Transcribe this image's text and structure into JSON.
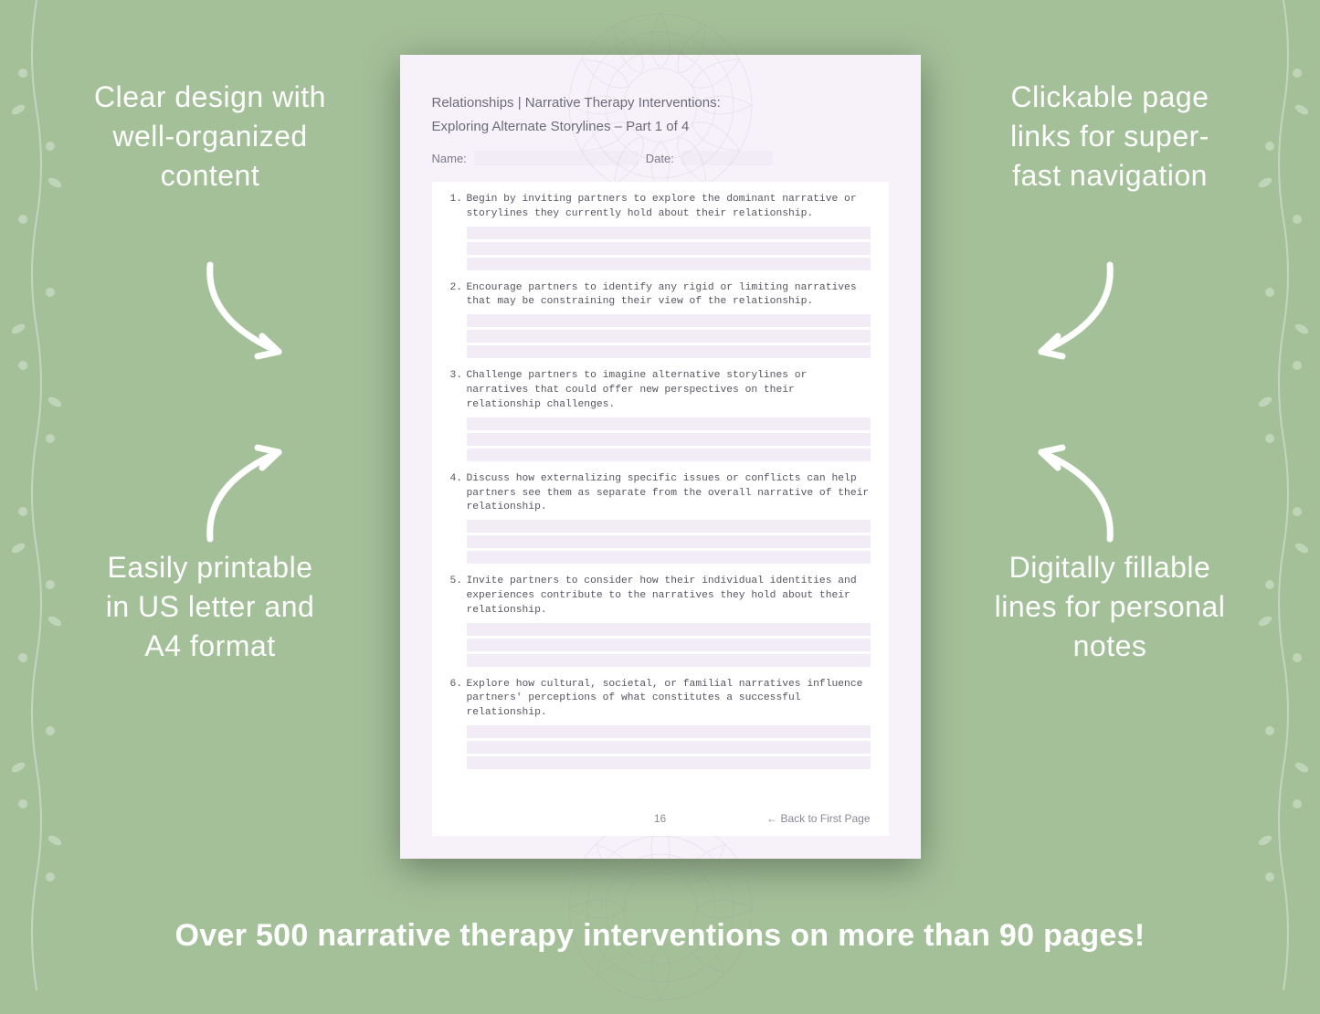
{
  "colors": {
    "background": "#a4c099",
    "callout_text": "#ffffff",
    "page_bg": "#f7f2fa",
    "page_inner_bg": "#ffffff",
    "title_color": "#6b6b7a",
    "body_color": "#555560",
    "field_bg": "#f2ecf6",
    "footer_color": "#8a8a96",
    "arrow_color": "#ffffff",
    "vine_color": "#ffffff",
    "mandala_color": "#888899"
  },
  "callouts": {
    "top_left": "Clear design with well-organized content",
    "top_right": "Clickable page links for super-fast navigation",
    "bottom_left": "Easily printable in US letter and A4 format",
    "bottom_right": "Digitally fillable lines for personal notes"
  },
  "bottom_banner": "Over 500 narrative therapy interventions on more than 90 pages!",
  "page": {
    "title_line1": "Relationships | Narrative Therapy Interventions:",
    "title_line2": "Exploring Alternate Storylines – Part 1 of 4",
    "name_label": "Name:",
    "date_label": "Date:",
    "page_number": "16",
    "back_link": "← Back to First Page",
    "questions": [
      {
        "num": "1.",
        "text": "Begin by inviting partners to explore the dominant narrative or storylines they currently hold about their relationship."
      },
      {
        "num": "2.",
        "text": "Encourage partners to identify any rigid or limiting narratives that may be constraining their view of the relationship."
      },
      {
        "num": "3.",
        "text": "Challenge partners to imagine alternative storylines or narratives that could offer new perspectives on their relationship challenges."
      },
      {
        "num": "4.",
        "text": "Discuss how externalizing specific issues or conflicts can help partners see them as separate from the overall narrative of their relationship."
      },
      {
        "num": "5.",
        "text": "Invite partners to consider how their individual identities and experiences contribute to the narratives they hold about their relationship."
      },
      {
        "num": "6.",
        "text": "Explore how cultural, societal, or familial narratives influence partners' perceptions of what constitutes a successful relationship."
      }
    ]
  }
}
